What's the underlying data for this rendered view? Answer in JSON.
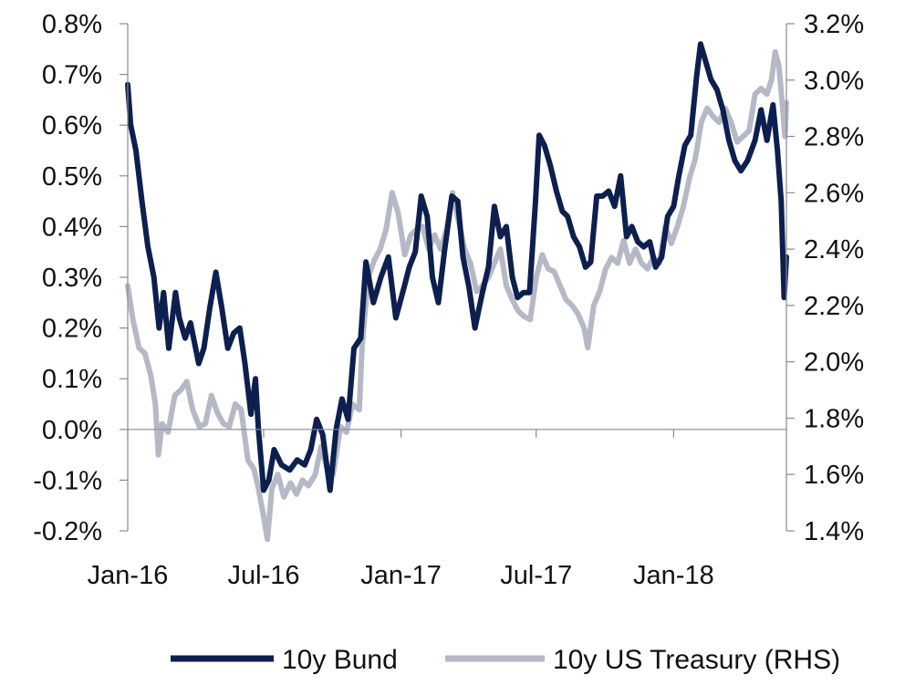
{
  "chart_data": {
    "type": "line",
    "x_range": [
      "2016-01-01",
      "2018-06-01"
    ],
    "x_ticks": [
      "Jan-16",
      "Jul-16",
      "Jan-17",
      "Jul-17",
      "Jan-18"
    ],
    "x_tick_dates": [
      "2016-01-01",
      "2016-07-01",
      "2017-01-01",
      "2017-07-01",
      "2018-01-01"
    ],
    "y_left": {
      "range": [
        -0.2,
        0.8
      ],
      "ticks": [
        "0.8%",
        "0.7%",
        "0.6%",
        "0.5%",
        "0.4%",
        "0.3%",
        "0.2%",
        "0.1%",
        "0.0%",
        "-0.1%",
        "-0.2%"
      ],
      "tick_values": [
        0.8,
        0.7,
        0.6,
        0.5,
        0.4,
        0.3,
        0.2,
        0.1,
        0.0,
        -0.1,
        -0.2
      ]
    },
    "y_right": {
      "range": [
        1.4,
        3.2
      ],
      "ticks": [
        "3.2%",
        "3.0%",
        "2.8%",
        "2.6%",
        "2.4%",
        "2.2%",
        "2.0%",
        "1.8%",
        "1.6%",
        "1.4%"
      ],
      "tick_values": [
        3.2,
        3.0,
        2.8,
        2.6,
        2.4,
        2.2,
        2.0,
        1.8,
        1.6,
        1.4
      ]
    },
    "grid": false,
    "legend_position": "bottom",
    "series": [
      {
        "name": "10y Bund",
        "axis": "left",
        "color": "#0d1f4e",
        "points": [
          [
            "2016-01-01",
            0.68
          ],
          [
            "2016-01-05",
            0.6
          ],
          [
            "2016-01-12",
            0.55
          ],
          [
            "2016-01-20",
            0.45
          ],
          [
            "2016-01-28",
            0.36
          ],
          [
            "2016-02-05",
            0.3
          ],
          [
            "2016-02-12",
            0.2
          ],
          [
            "2016-02-18",
            0.27
          ],
          [
            "2016-02-25",
            0.16
          ],
          [
            "2016-03-05",
            0.27
          ],
          [
            "2016-03-10",
            0.22
          ],
          [
            "2016-03-18",
            0.18
          ],
          [
            "2016-03-25",
            0.21
          ],
          [
            "2016-04-05",
            0.13
          ],
          [
            "2016-04-12",
            0.16
          ],
          [
            "2016-04-20",
            0.24
          ],
          [
            "2016-04-28",
            0.31
          ],
          [
            "2016-05-06",
            0.24
          ],
          [
            "2016-05-14",
            0.16
          ],
          [
            "2016-05-22",
            0.19
          ],
          [
            "2016-05-30",
            0.2
          ],
          [
            "2016-06-06",
            0.13
          ],
          [
            "2016-06-14",
            0.03
          ],
          [
            "2016-06-20",
            0.1
          ],
          [
            "2016-06-24",
            0.0
          ],
          [
            "2016-07-01",
            -0.12
          ],
          [
            "2016-07-08",
            -0.1
          ],
          [
            "2016-07-15",
            -0.04
          ],
          [
            "2016-07-25",
            -0.07
          ],
          [
            "2016-08-05",
            -0.08
          ],
          [
            "2016-08-15",
            -0.06
          ],
          [
            "2016-08-25",
            -0.07
          ],
          [
            "2016-09-02",
            -0.04
          ],
          [
            "2016-09-10",
            0.02
          ],
          [
            "2016-09-18",
            -0.01
          ],
          [
            "2016-09-28",
            -0.12
          ],
          [
            "2016-10-06",
            0.0
          ],
          [
            "2016-10-14",
            0.06
          ],
          [
            "2016-10-22",
            0.02
          ],
          [
            "2016-10-30",
            0.16
          ],
          [
            "2016-11-08",
            0.18
          ],
          [
            "2016-11-15",
            0.33
          ],
          [
            "2016-11-25",
            0.25
          ],
          [
            "2016-12-05",
            0.3
          ],
          [
            "2016-12-15",
            0.34
          ],
          [
            "2016-12-25",
            0.22
          ],
          [
            "2017-01-05",
            0.28
          ],
          [
            "2017-01-12",
            0.32
          ],
          [
            "2017-01-20",
            0.35
          ],
          [
            "2017-01-28",
            0.46
          ],
          [
            "2017-02-05",
            0.42
          ],
          [
            "2017-02-12",
            0.3
          ],
          [
            "2017-02-20",
            0.25
          ],
          [
            "2017-02-28",
            0.35
          ],
          [
            "2017-03-10",
            0.46
          ],
          [
            "2017-03-18",
            0.45
          ],
          [
            "2017-03-25",
            0.34
          ],
          [
            "2017-04-02",
            0.28
          ],
          [
            "2017-04-10",
            0.2
          ],
          [
            "2017-04-20",
            0.27
          ],
          [
            "2017-04-28",
            0.32
          ],
          [
            "2017-05-06",
            0.44
          ],
          [
            "2017-05-14",
            0.38
          ],
          [
            "2017-05-22",
            0.4
          ],
          [
            "2017-05-30",
            0.3
          ],
          [
            "2017-06-06",
            0.26
          ],
          [
            "2017-06-14",
            0.27
          ],
          [
            "2017-06-22",
            0.27
          ],
          [
            "2017-06-30",
            0.45
          ],
          [
            "2017-07-05",
            0.58
          ],
          [
            "2017-07-12",
            0.56
          ],
          [
            "2017-07-20",
            0.52
          ],
          [
            "2017-07-28",
            0.47
          ],
          [
            "2017-08-05",
            0.43
          ],
          [
            "2017-08-12",
            0.42
          ],
          [
            "2017-08-20",
            0.38
          ],
          [
            "2017-08-28",
            0.36
          ],
          [
            "2017-09-05",
            0.32
          ],
          [
            "2017-09-12",
            0.33
          ],
          [
            "2017-09-20",
            0.46
          ],
          [
            "2017-09-28",
            0.46
          ],
          [
            "2017-10-06",
            0.47
          ],
          [
            "2017-10-14",
            0.44
          ],
          [
            "2017-10-22",
            0.5
          ],
          [
            "2017-10-30",
            0.38
          ],
          [
            "2017-11-06",
            0.4
          ],
          [
            "2017-11-14",
            0.37
          ],
          [
            "2017-11-22",
            0.36
          ],
          [
            "2017-11-30",
            0.37
          ],
          [
            "2017-12-08",
            0.32
          ],
          [
            "2017-12-16",
            0.34
          ],
          [
            "2017-12-24",
            0.42
          ],
          [
            "2018-01-01",
            0.44
          ],
          [
            "2018-01-08",
            0.5
          ],
          [
            "2018-01-16",
            0.56
          ],
          [
            "2018-01-24",
            0.58
          ],
          [
            "2018-02-01",
            0.7
          ],
          [
            "2018-02-06",
            0.76
          ],
          [
            "2018-02-12",
            0.73
          ],
          [
            "2018-02-20",
            0.69
          ],
          [
            "2018-02-28",
            0.67
          ],
          [
            "2018-03-08",
            0.63
          ],
          [
            "2018-03-16",
            0.57
          ],
          [
            "2018-03-24",
            0.53
          ],
          [
            "2018-04-01",
            0.51
          ],
          [
            "2018-04-10",
            0.53
          ],
          [
            "2018-04-20",
            0.57
          ],
          [
            "2018-04-28",
            0.63
          ],
          [
            "2018-05-06",
            0.57
          ],
          [
            "2018-05-14",
            0.64
          ],
          [
            "2018-05-20",
            0.55
          ],
          [
            "2018-05-25",
            0.45
          ],
          [
            "2018-05-29",
            0.26
          ],
          [
            "2018-06-01",
            0.34
          ]
        ]
      },
      {
        "name": "10y US Treasury (RHS)",
        "axis": "right",
        "color": "#b5b9c6",
        "points": [
          [
            "2016-01-01",
            2.27
          ],
          [
            "2016-01-08",
            2.15
          ],
          [
            "2016-01-16",
            2.05
          ],
          [
            "2016-01-24",
            2.03
          ],
          [
            "2016-02-01",
            1.95
          ],
          [
            "2016-02-07",
            1.85
          ],
          [
            "2016-02-11",
            1.67
          ],
          [
            "2016-02-16",
            1.78
          ],
          [
            "2016-02-24",
            1.75
          ],
          [
            "2016-03-04",
            1.88
          ],
          [
            "2016-03-12",
            1.9
          ],
          [
            "2016-03-20",
            1.93
          ],
          [
            "2016-03-28",
            1.83
          ],
          [
            "2016-04-06",
            1.77
          ],
          [
            "2016-04-14",
            1.78
          ],
          [
            "2016-04-22",
            1.88
          ],
          [
            "2016-04-30",
            1.82
          ],
          [
            "2016-05-08",
            1.78
          ],
          [
            "2016-05-16",
            1.77
          ],
          [
            "2016-05-24",
            1.85
          ],
          [
            "2016-06-01",
            1.83
          ],
          [
            "2016-06-10",
            1.65
          ],
          [
            "2016-06-18",
            1.62
          ],
          [
            "2016-06-24",
            1.55
          ],
          [
            "2016-07-01",
            1.45
          ],
          [
            "2016-07-06",
            1.37
          ],
          [
            "2016-07-12",
            1.55
          ],
          [
            "2016-07-20",
            1.6
          ],
          [
            "2016-07-28",
            1.52
          ],
          [
            "2016-08-06",
            1.57
          ],
          [
            "2016-08-14",
            1.53
          ],
          [
            "2016-08-22",
            1.58
          ],
          [
            "2016-08-30",
            1.56
          ],
          [
            "2016-09-08",
            1.6
          ],
          [
            "2016-09-16",
            1.7
          ],
          [
            "2016-09-24",
            1.62
          ],
          [
            "2016-10-02",
            1.6
          ],
          [
            "2016-10-12",
            1.77
          ],
          [
            "2016-10-20",
            1.75
          ],
          [
            "2016-10-28",
            1.85
          ],
          [
            "2016-11-06",
            1.83
          ],
          [
            "2016-11-10",
            2.06
          ],
          [
            "2016-11-18",
            2.3
          ],
          [
            "2016-11-26",
            2.36
          ],
          [
            "2016-12-04",
            2.4
          ],
          [
            "2016-12-12",
            2.47
          ],
          [
            "2016-12-20",
            2.6
          ],
          [
            "2016-12-28",
            2.53
          ],
          [
            "2017-01-06",
            2.38
          ],
          [
            "2017-01-14",
            2.45
          ],
          [
            "2017-01-22",
            2.47
          ],
          [
            "2017-01-30",
            2.48
          ],
          [
            "2017-02-07",
            2.4
          ],
          [
            "2017-02-15",
            2.45
          ],
          [
            "2017-02-23",
            2.4
          ],
          [
            "2017-03-03",
            2.47
          ],
          [
            "2017-03-11",
            2.6
          ],
          [
            "2017-03-19",
            2.5
          ],
          [
            "2017-03-27",
            2.4
          ],
          [
            "2017-04-04",
            2.35
          ],
          [
            "2017-04-12",
            2.25
          ],
          [
            "2017-04-20",
            2.27
          ],
          [
            "2017-04-28",
            2.3
          ],
          [
            "2017-05-06",
            2.35
          ],
          [
            "2017-05-14",
            2.4
          ],
          [
            "2017-05-22",
            2.27
          ],
          [
            "2017-05-30",
            2.22
          ],
          [
            "2017-06-07",
            2.18
          ],
          [
            "2017-06-15",
            2.16
          ],
          [
            "2017-06-23",
            2.15
          ],
          [
            "2017-07-01",
            2.3
          ],
          [
            "2017-07-09",
            2.38
          ],
          [
            "2017-07-17",
            2.33
          ],
          [
            "2017-07-25",
            2.32
          ],
          [
            "2017-08-02",
            2.27
          ],
          [
            "2017-08-10",
            2.22
          ],
          [
            "2017-08-18",
            2.2
          ],
          [
            "2017-08-26",
            2.17
          ],
          [
            "2017-09-03",
            2.12
          ],
          [
            "2017-09-08",
            2.05
          ],
          [
            "2017-09-16",
            2.2
          ],
          [
            "2017-09-24",
            2.25
          ],
          [
            "2017-10-02",
            2.33
          ],
          [
            "2017-10-10",
            2.37
          ],
          [
            "2017-10-18",
            2.35
          ],
          [
            "2017-10-26",
            2.43
          ],
          [
            "2017-11-03",
            2.35
          ],
          [
            "2017-11-11",
            2.4
          ],
          [
            "2017-11-19",
            2.35
          ],
          [
            "2017-11-27",
            2.33
          ],
          [
            "2017-12-05",
            2.37
          ],
          [
            "2017-12-13",
            2.35
          ],
          [
            "2017-12-21",
            2.48
          ],
          [
            "2017-12-29",
            2.42
          ],
          [
            "2018-01-06",
            2.48
          ],
          [
            "2018-01-14",
            2.55
          ],
          [
            "2018-01-22",
            2.65
          ],
          [
            "2018-01-30",
            2.72
          ],
          [
            "2018-02-07",
            2.85
          ],
          [
            "2018-02-15",
            2.9
          ],
          [
            "2018-02-23",
            2.87
          ],
          [
            "2018-03-03",
            2.85
          ],
          [
            "2018-03-11",
            2.9
          ],
          [
            "2018-03-19",
            2.85
          ],
          [
            "2018-03-27",
            2.78
          ],
          [
            "2018-04-04",
            2.8
          ],
          [
            "2018-04-12",
            2.82
          ],
          [
            "2018-04-20",
            2.95
          ],
          [
            "2018-04-28",
            2.97
          ],
          [
            "2018-05-06",
            2.95
          ],
          [
            "2018-05-12",
            3.0
          ],
          [
            "2018-05-17",
            3.1
          ],
          [
            "2018-05-22",
            3.05
          ],
          [
            "2018-05-27",
            2.9
          ],
          [
            "2018-05-30",
            2.8
          ],
          [
            "2018-06-01",
            2.92
          ]
        ]
      }
    ]
  }
}
